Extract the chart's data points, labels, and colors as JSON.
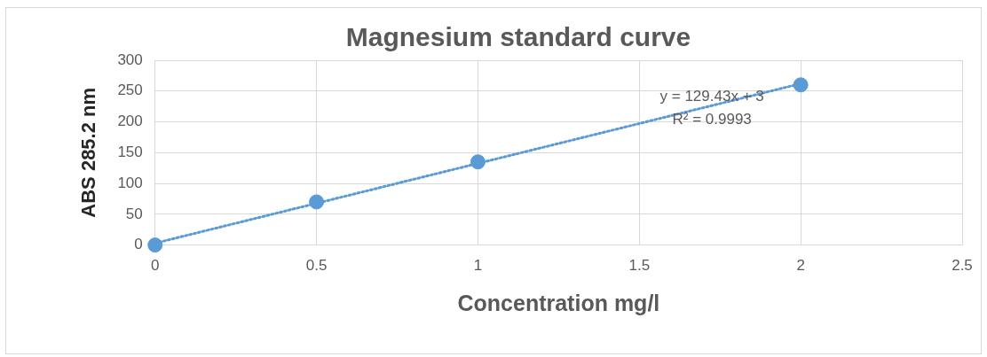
{
  "chart_data": {
    "type": "scatter",
    "title": "Magnesium standard curve",
    "xlabel": "Concentration mg/l",
    "ylabel": "ABS 285.2 nm",
    "x": [
      0,
      0.5,
      1,
      2
    ],
    "series": [
      {
        "type": "scatter",
        "color": "#5b9bd5",
        "values": [
          0,
          70,
          135,
          260
        ],
        "marker": "circle"
      },
      {
        "type": "line",
        "color": "#5b9bd5",
        "x": [
          0,
          2
        ],
        "values": [
          3,
          262
        ],
        "line_style": "dotted",
        "marker": "none"
      }
    ],
    "xlim": [
      0,
      2.5
    ],
    "xticks": [
      0,
      0.5,
      1,
      1.5,
      2,
      2.5
    ],
    "ylim": [
      0,
      300
    ],
    "yticks": [
      0,
      50,
      100,
      150,
      200,
      250,
      300
    ],
    "grid": true,
    "legend": false,
    "annotations": [
      "y = 129.43x + 3",
      "R² = 0.9993"
    ]
  }
}
